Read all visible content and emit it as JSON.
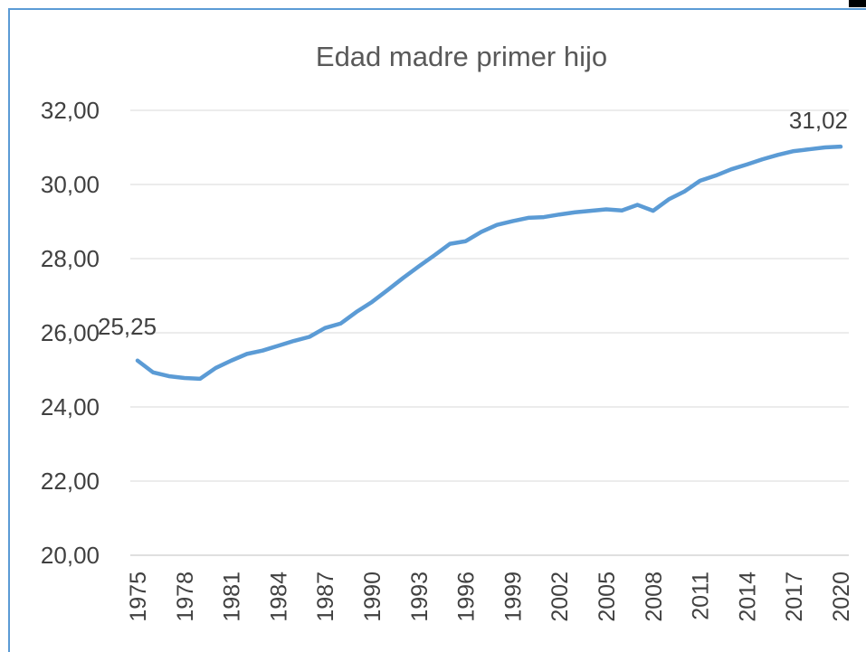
{
  "chart_data": {
    "type": "line",
    "title": "Edad madre primer hijo",
    "categories": [
      "1975",
      null,
      null,
      "1978",
      null,
      null,
      "1981",
      null,
      null,
      "1984",
      null,
      null,
      "1987",
      null,
      null,
      "1990",
      null,
      null,
      "1993",
      null,
      null,
      "1996",
      null,
      null,
      "1999",
      null,
      null,
      "2002",
      null,
      null,
      "2005",
      null,
      null,
      "2008",
      null,
      null,
      "2011",
      null,
      null,
      "2014",
      null,
      null,
      "2017",
      null,
      null,
      "2020"
    ],
    "series": [
      {
        "name": null,
        "color": "#5b9bd5",
        "values": [
          25.25,
          24.93,
          24.83,
          24.78,
          24.76,
          25.05,
          25.25,
          25.43,
          25.52,
          25.65,
          25.78,
          25.89,
          26.13,
          26.25,
          26.56,
          26.83,
          27.15,
          27.48,
          27.79,
          28.09,
          28.4,
          28.47,
          28.72,
          28.91,
          29.01,
          29.1,
          29.12,
          29.19,
          29.25,
          29.29,
          29.33,
          29.3,
          29.45,
          29.29,
          29.6,
          29.81,
          30.1,
          30.24,
          30.41,
          30.54,
          30.68,
          30.8,
          30.9,
          30.95,
          31.0,
          31.02
        ],
        "value_labels": [
          "25,25",
          null,
          null,
          null,
          null,
          null,
          null,
          null,
          null,
          null,
          null,
          null,
          null,
          null,
          null,
          null,
          null,
          null,
          null,
          null,
          null,
          null,
          null,
          null,
          null,
          null,
          null,
          null,
          null,
          null,
          null,
          null,
          null,
          null,
          null,
          null,
          null,
          null,
          null,
          null,
          null,
          null,
          null,
          null,
          null,
          "31,02"
        ]
      }
    ],
    "ylim": [
      20,
      32
    ],
    "yticks": [
      {
        "value": 20,
        "label": "20,00"
      },
      {
        "value": 22,
        "label": "22,00"
      },
      {
        "value": 24,
        "label": "24,00"
      },
      {
        "value": 26,
        "label": "26,00"
      },
      {
        "value": 28,
        "label": "28,00"
      },
      {
        "value": 30,
        "label": "30,00"
      },
      {
        "value": 32,
        "label": "32,00"
      }
    ],
    "grid": true
  }
}
